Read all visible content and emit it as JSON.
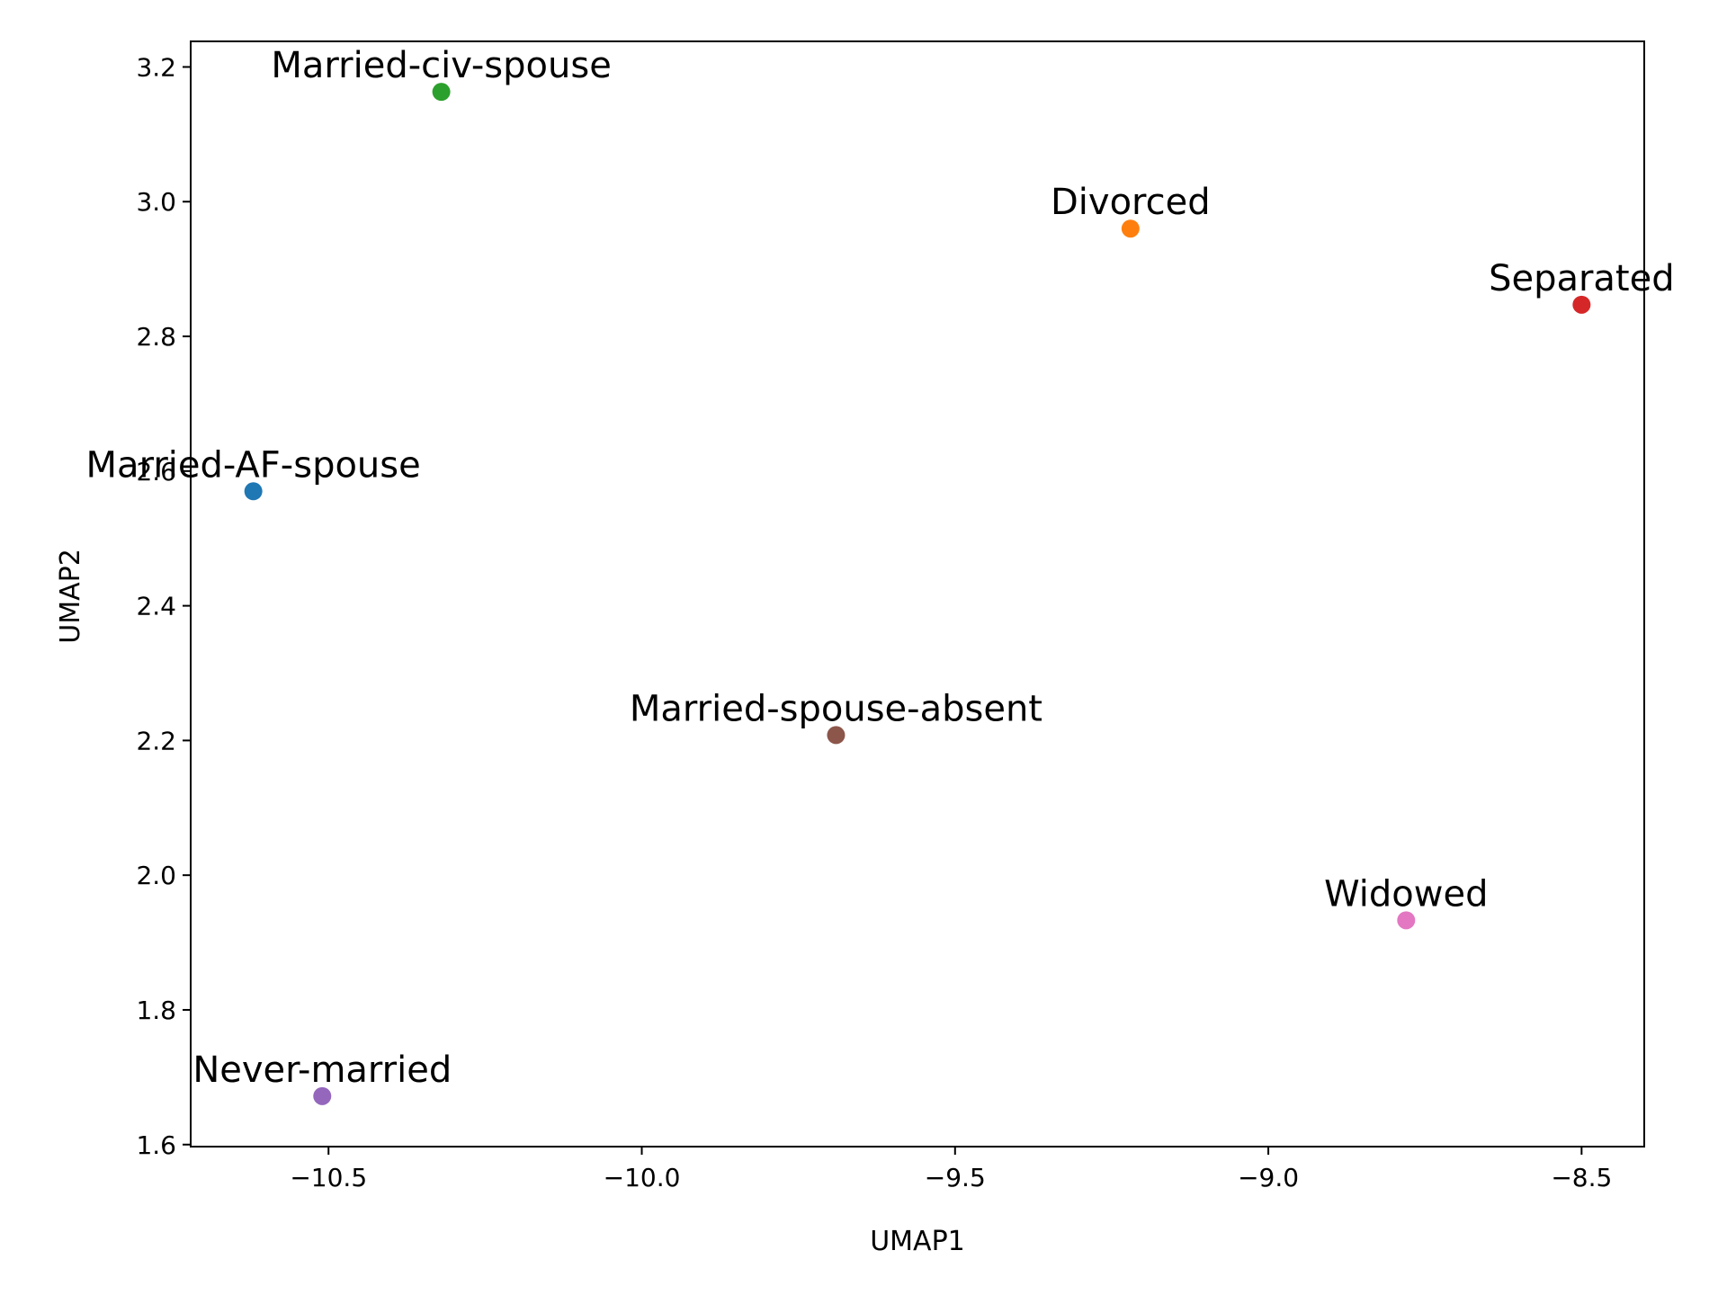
{
  "chart_data": {
    "type": "scatter",
    "title": "",
    "xlabel": "UMAP1",
    "ylabel": "UMAP2",
    "xlim": [
      -10.72,
      -8.4
    ],
    "ylim": [
      1.597,
      3.238
    ],
    "xticks": [
      -10.5,
      -10.0,
      -9.5,
      -9.0,
      -8.5
    ],
    "xtick_labels": [
      "−10.5",
      "−10.0",
      "−9.5",
      "−9.0",
      "−8.5"
    ],
    "yticks": [
      1.6,
      1.8,
      2.0,
      2.2,
      2.4,
      2.6,
      2.8,
      3.0,
      3.2
    ],
    "ytick_labels": [
      "1.6",
      "1.8",
      "2.0",
      "2.2",
      "2.4",
      "2.6",
      "2.8",
      "3.0",
      "3.2"
    ],
    "grid": false,
    "points": [
      {
        "label": "Married-AF-spouse",
        "x": -10.62,
        "y": 2.57,
        "color": "#1f77b4"
      },
      {
        "label": "Divorced",
        "x": -9.22,
        "y": 2.96,
        "color": "#ff7f0e"
      },
      {
        "label": "Married-civ-spouse",
        "x": -10.32,
        "y": 3.163,
        "color": "#2ca02c"
      },
      {
        "label": "Separated",
        "x": -8.5,
        "y": 2.847,
        "color": "#d62728"
      },
      {
        "label": "Never-married",
        "x": -10.51,
        "y": 1.672,
        "color": "#9467bd"
      },
      {
        "label": "Married-spouse-absent",
        "x": -9.69,
        "y": 2.208,
        "color": "#8c564b"
      },
      {
        "label": "Widowed",
        "x": -8.78,
        "y": 1.933,
        "color": "#e377c2"
      }
    ]
  }
}
